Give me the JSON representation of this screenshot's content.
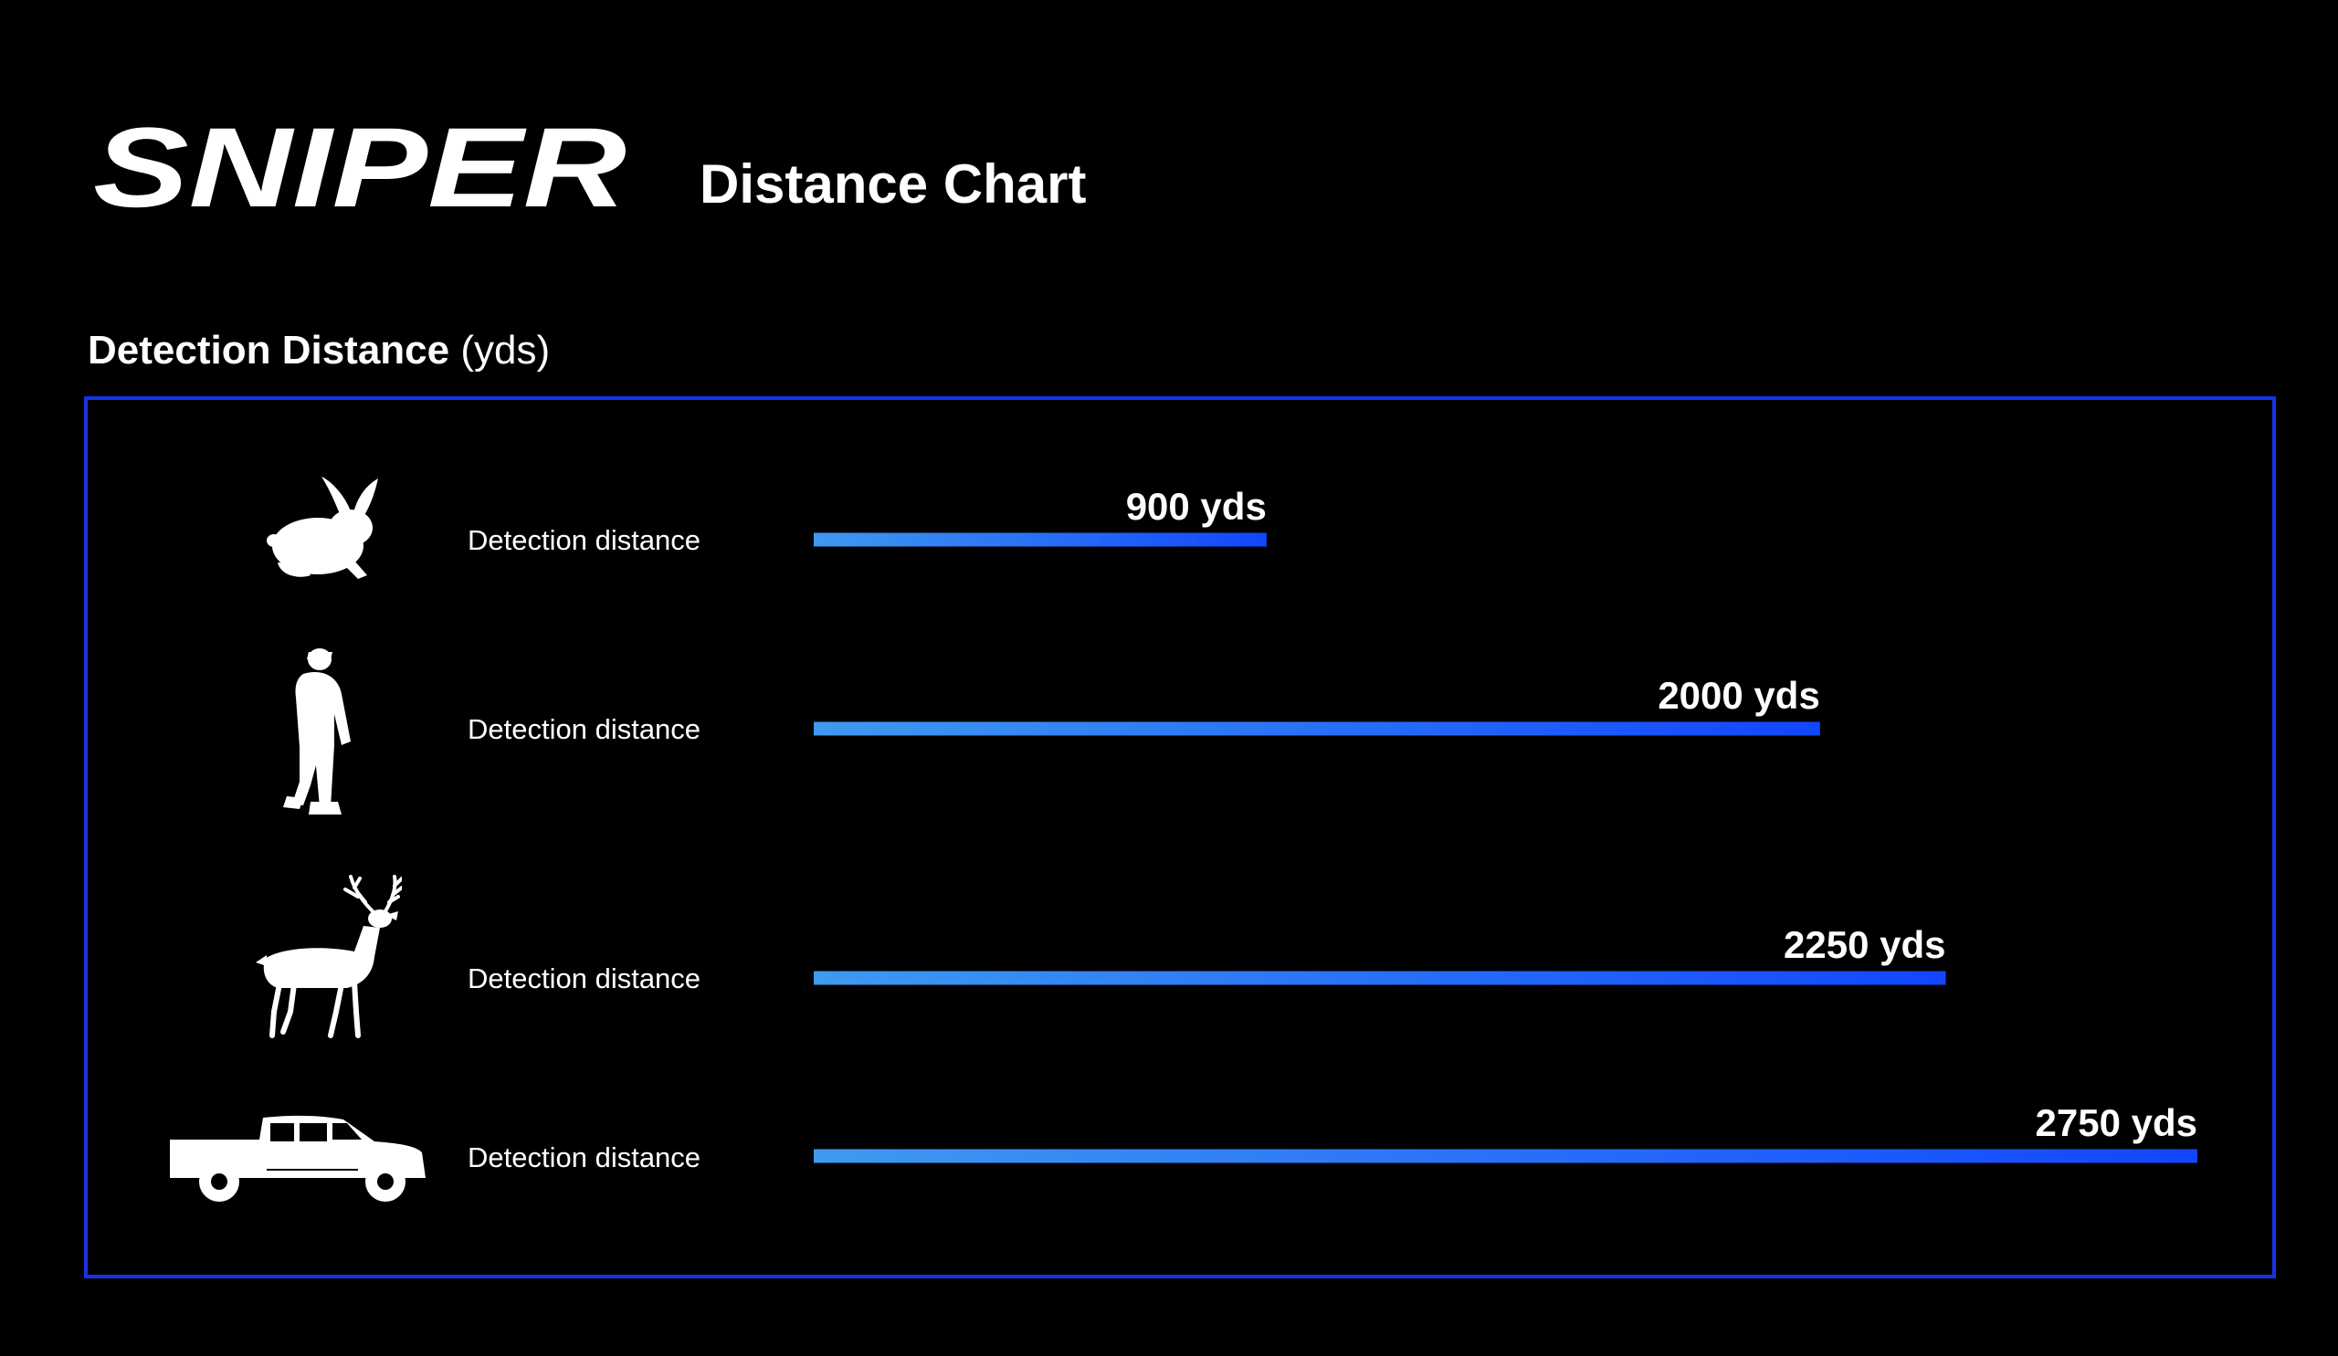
{
  "header": {
    "logo_text": "SNIPER",
    "title": "Distance Chart"
  },
  "section": {
    "heading_bold": "Detection Distance",
    "heading_unit": " (yds)"
  },
  "colors": {
    "background": "#000000",
    "frame": "#1733e6",
    "bar_start": "#3f9af0",
    "bar_end": "#1246ff",
    "text": "#ffffff"
  },
  "chart_data": {
    "type": "bar",
    "orientation": "horizontal",
    "title": "Distance Chart",
    "xlabel": "",
    "ylabel": "",
    "unit": "yds",
    "categories": [
      "rabbit",
      "person",
      "deer",
      "truck"
    ],
    "category_label": "Detection distance",
    "values": [
      900,
      2000,
      2250,
      2750
    ],
    "value_labels": [
      "900 yds",
      "2000 yds",
      "2250 yds",
      "2750 yds"
    ],
    "xlim": [
      0,
      2750
    ],
    "grid": false,
    "legend": "none"
  }
}
